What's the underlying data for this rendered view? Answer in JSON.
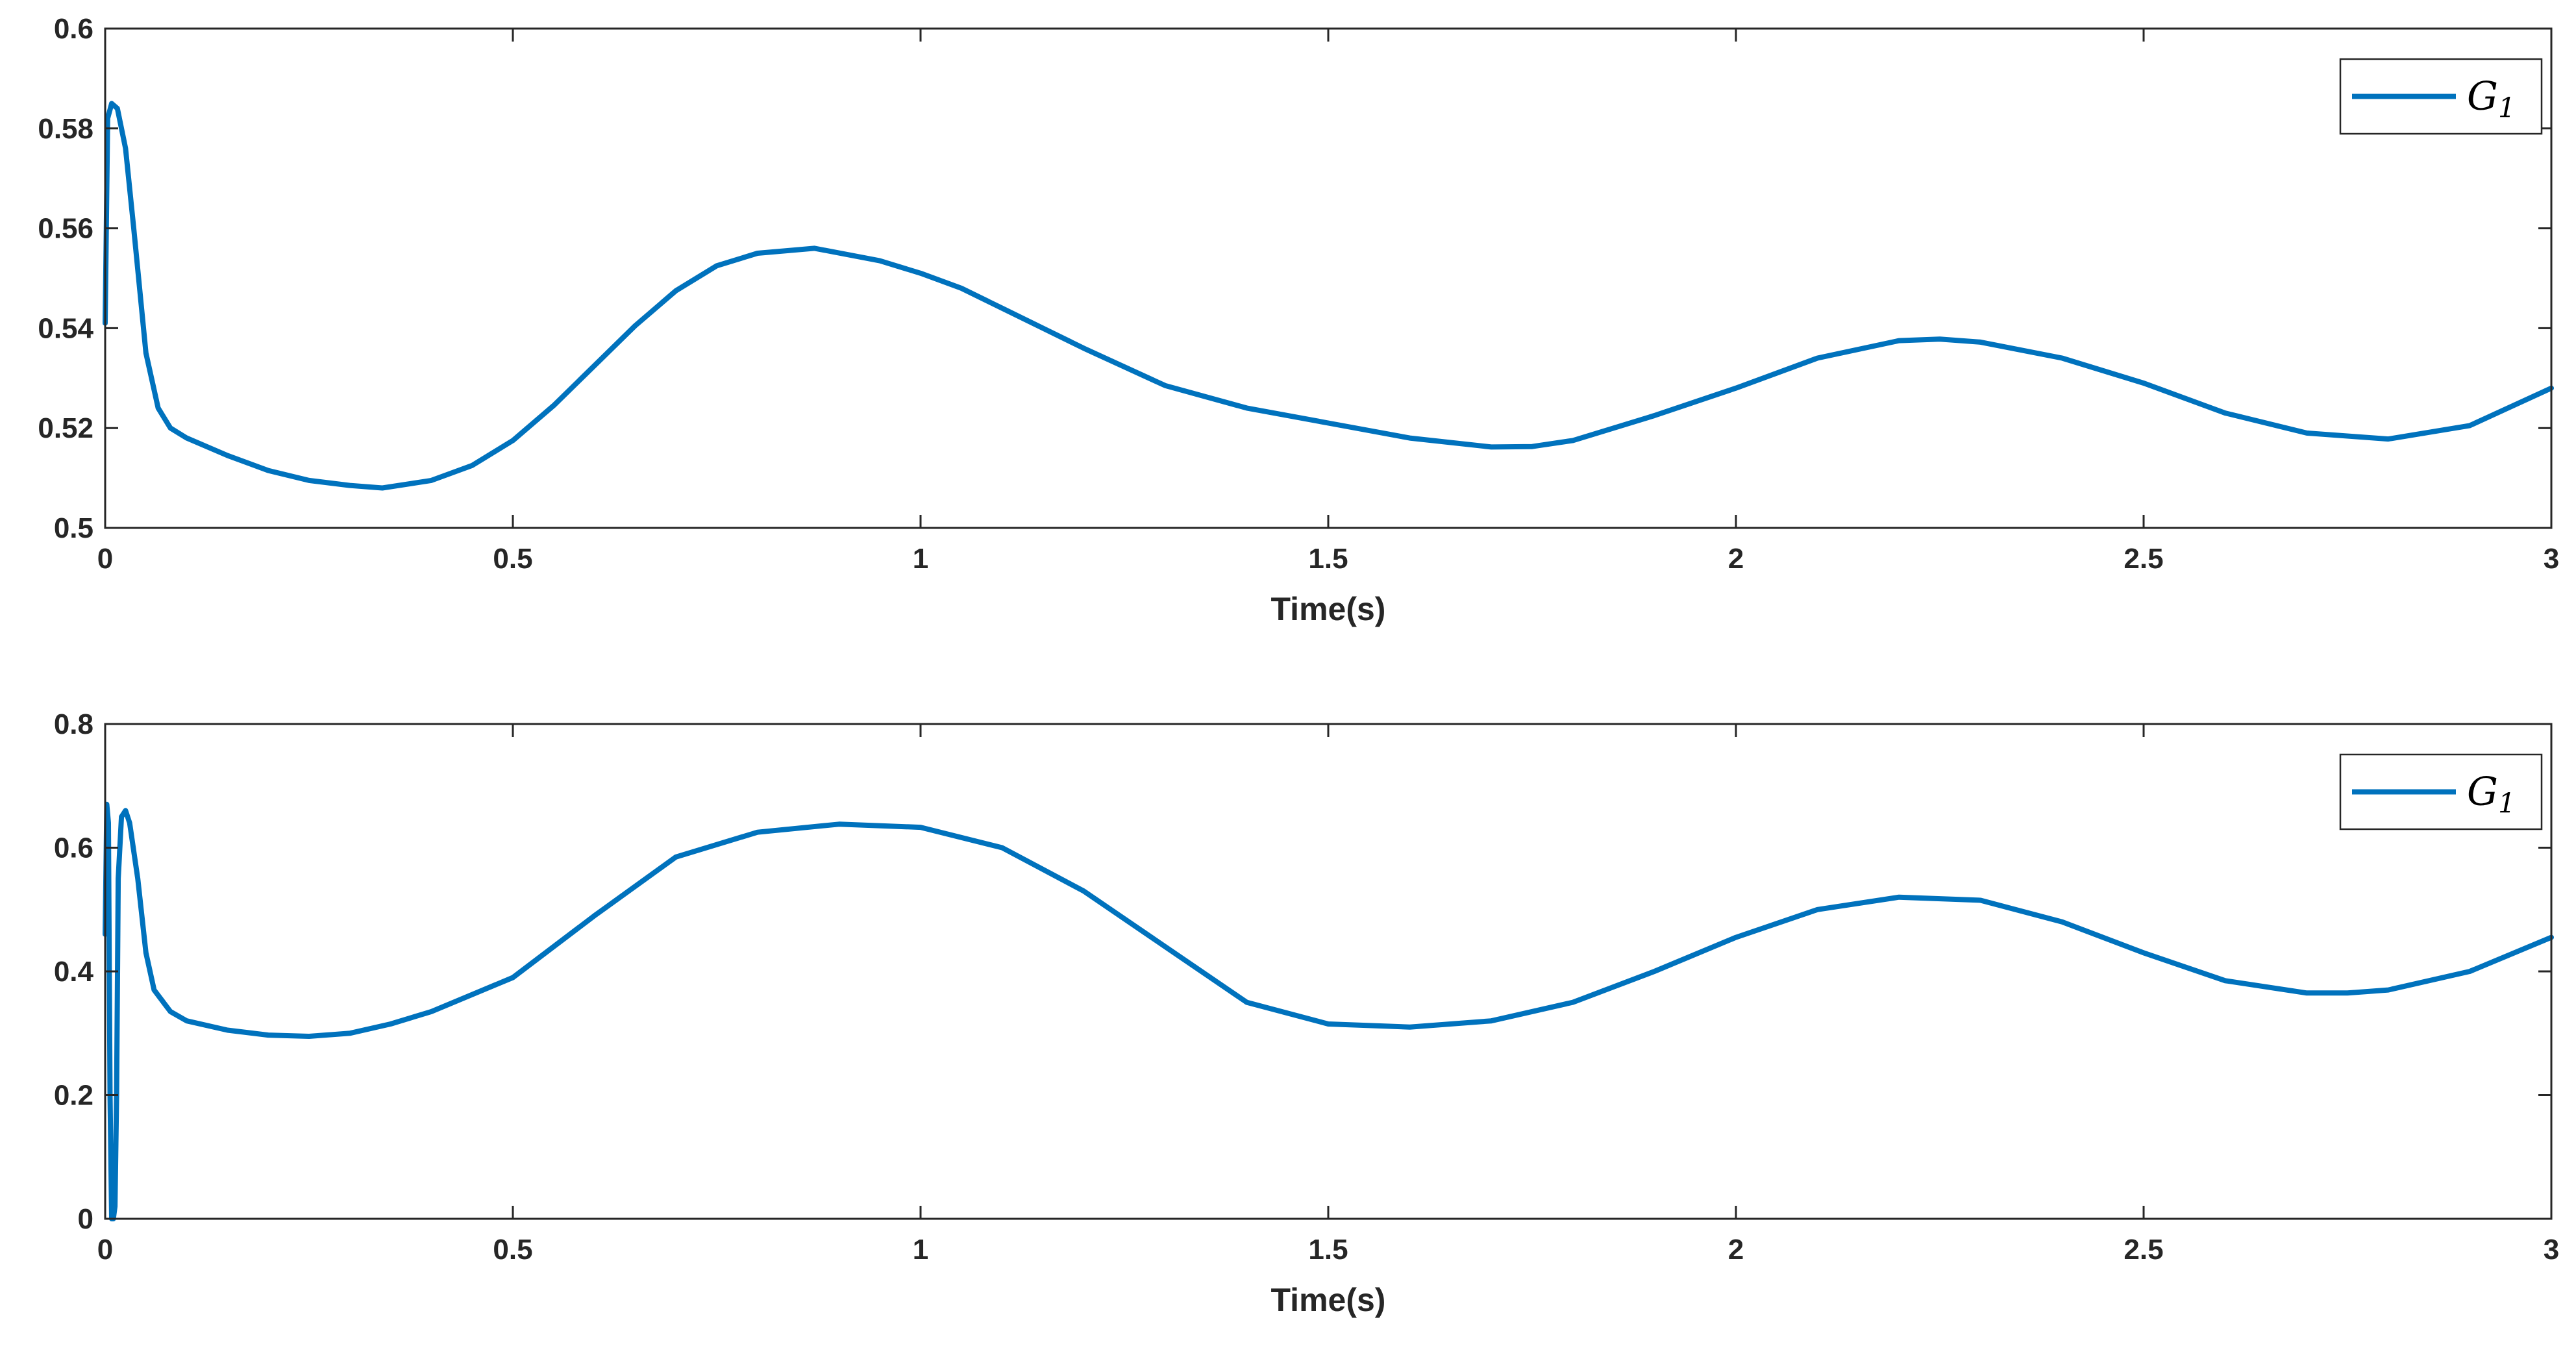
{
  "figure": {
    "background": "#ffffff",
    "axis_color": "#262626",
    "line_color": "#0072BD"
  },
  "chart_data": [
    {
      "type": "line",
      "xlabel": "Time(s)",
      "ylabel": "",
      "xlim": [
        0,
        3
      ],
      "ylim": [
        0.5,
        0.6
      ],
      "xticks": [
        0,
        0.5,
        1,
        1.5,
        2,
        2.5,
        3
      ],
      "xtick_labels": [
        "0",
        "0.5",
        "1",
        "1.5",
        "2",
        "2.5",
        "3"
      ],
      "yticks": [
        0.5,
        0.52,
        0.54,
        0.56,
        0.58,
        0.6
      ],
      "ytick_labels": [
        "0.5",
        "0.52",
        "0.54",
        "0.56",
        "0.58",
        "0.6"
      ],
      "grid": false,
      "legend_position": "top-right",
      "series": [
        {
          "name": "G",
          "name_subscript": "1",
          "color": "#0072BD",
          "x": [
            0,
            0.003,
            0.008,
            0.015,
            0.025,
            0.035,
            0.05,
            0.065,
            0.08,
            0.1,
            0.15,
            0.2,
            0.25,
            0.3,
            0.34,
            0.4,
            0.45,
            0.5,
            0.55,
            0.6,
            0.65,
            0.7,
            0.75,
            0.8,
            0.87,
            0.95,
            1.0,
            1.05,
            1.1,
            1.2,
            1.3,
            1.4,
            1.5,
            1.6,
            1.7,
            1.75,
            1.8,
            1.9,
            2.0,
            2.1,
            2.2,
            2.25,
            2.3,
            2.4,
            2.5,
            2.6,
            2.7,
            2.8,
            2.9,
            3.0
          ],
          "y": [
            0.541,
            0.582,
            0.585,
            0.584,
            0.576,
            0.56,
            0.535,
            0.524,
            0.52,
            0.518,
            0.5145,
            0.5115,
            0.5095,
            0.5085,
            0.508,
            0.5095,
            0.5125,
            0.5175,
            0.5245,
            0.5325,
            0.5405,
            0.5475,
            0.5525,
            0.555,
            0.556,
            0.5535,
            0.551,
            0.548,
            0.544,
            0.536,
            0.5285,
            0.524,
            0.521,
            0.518,
            0.5162,
            0.5163,
            0.5175,
            0.5225,
            0.528,
            0.534,
            0.5375,
            0.5378,
            0.5372,
            0.534,
            0.529,
            0.523,
            0.519,
            0.5178,
            0.5205,
            0.528
          ]
        }
      ]
    },
    {
      "type": "line",
      "xlabel": "Time(s)",
      "ylabel": "",
      "xlim": [
        0,
        3
      ],
      "ylim": [
        0,
        0.8
      ],
      "xticks": [
        0,
        0.5,
        1,
        1.5,
        2,
        2.5,
        3
      ],
      "xtick_labels": [
        "0",
        "0.5",
        "1",
        "1.5",
        "2",
        "2.5",
        "3"
      ],
      "yticks": [
        0,
        0.2,
        0.4,
        0.6,
        0.8
      ],
      "ytick_labels": [
        "0",
        "0.2",
        "0.4",
        "0.6",
        "0.8"
      ],
      "grid": false,
      "legend_position": "top-right",
      "series": [
        {
          "name": "G",
          "name_subscript": "1",
          "color": "#0072BD",
          "x": [
            0,
            0.002,
            0.004,
            0.006,
            0.008,
            0.01,
            0.012,
            0.014,
            0.016,
            0.02,
            0.025,
            0.03,
            0.04,
            0.05,
            0.06,
            0.08,
            0.1,
            0.15,
            0.2,
            0.25,
            0.3,
            0.35,
            0.4,
            0.5,
            0.6,
            0.7,
            0.8,
            0.9,
            1.0,
            1.1,
            1.2,
            1.3,
            1.4,
            1.5,
            1.6,
            1.7,
            1.8,
            1.9,
            2.0,
            2.1,
            2.2,
            2.3,
            2.4,
            2.5,
            2.6,
            2.7,
            2.75,
            2.8,
            2.9,
            3.0
          ],
          "y": [
            0.46,
            0.67,
            0.64,
            0.2,
            0.0,
            0.0,
            0.02,
            0.2,
            0.55,
            0.65,
            0.66,
            0.64,
            0.55,
            0.43,
            0.37,
            0.335,
            0.32,
            0.305,
            0.297,
            0.295,
            0.3,
            0.315,
            0.335,
            0.39,
            0.49,
            0.585,
            0.625,
            0.638,
            0.633,
            0.6,
            0.53,
            0.44,
            0.35,
            0.315,
            0.31,
            0.32,
            0.35,
            0.4,
            0.455,
            0.5,
            0.52,
            0.515,
            0.48,
            0.43,
            0.385,
            0.365,
            0.365,
            0.37,
            0.4,
            0.455
          ]
        }
      ]
    }
  ]
}
